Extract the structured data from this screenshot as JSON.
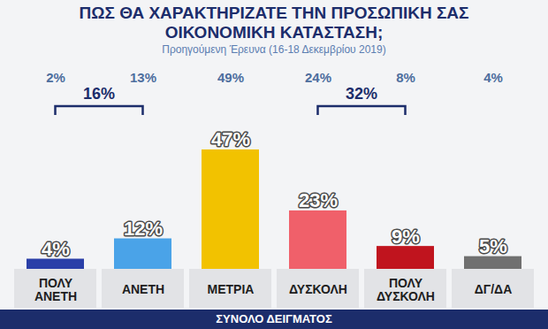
{
  "chart_data": {
    "type": "bar",
    "title": "ΠΩΣ ΘΑ ΧΑΡΑΚΤΗΡΙΖΑΤΕ ΤΗΝ ΠΡΟΣΩΠΙΚΗ ΣΑΣ ΟΙΚΟΝΟΜΙΚΗ ΚΑΤΑΣΤΑΣΗ;",
    "subtitle": "Προηγούμενη Έρευνα (16-18 Δεκεμβρίου 2019)",
    "caption": "ΣΥΝΟΛΟ ΔΕΙΓΜΑΤΟΣ",
    "categories": [
      "ΠΟΛΥ ΑΝΕΤΗ",
      "ΑΝΕΤΗ",
      "ΜΕΤΡΙΑ",
      "ΔΥΣΚΟΛΗ",
      "ΠΟΛΥ ΔΥΣΚΟΛΗ",
      "ΔΓ/ΔΑ"
    ],
    "values": [
      4,
      12,
      47,
      23,
      9,
      5
    ],
    "value_labels": [
      "4%",
      "12%",
      "47%",
      "23%",
      "9%",
      "5%"
    ],
    "colors": [
      "#2a3fa8",
      "#4aa3e8",
      "#f2c200",
      "#f0606a",
      "#c0141e",
      "#707070"
    ],
    "previous": {
      "values": [
        2,
        13,
        49,
        24,
        8,
        4
      ],
      "value_labels": [
        "2%",
        "13%",
        "49%",
        "24%",
        "8%",
        "4%"
      ]
    },
    "groups": [
      {
        "value": 16,
        "label": "16%",
        "from": "ΠΟΛΥ ΑΝΕΤΗ",
        "to": "ΑΝΕΤΗ"
      },
      {
        "value": 32,
        "label": "32%",
        "from": "ΔΥΣΚΟΛΗ",
        "to": "ΠΟΛΥ ΔΥΣΚΟΛΗ"
      }
    ],
    "ylim": [
      0,
      55
    ],
    "grid": false,
    "data_labels": true,
    "tick_labels": "x"
  }
}
